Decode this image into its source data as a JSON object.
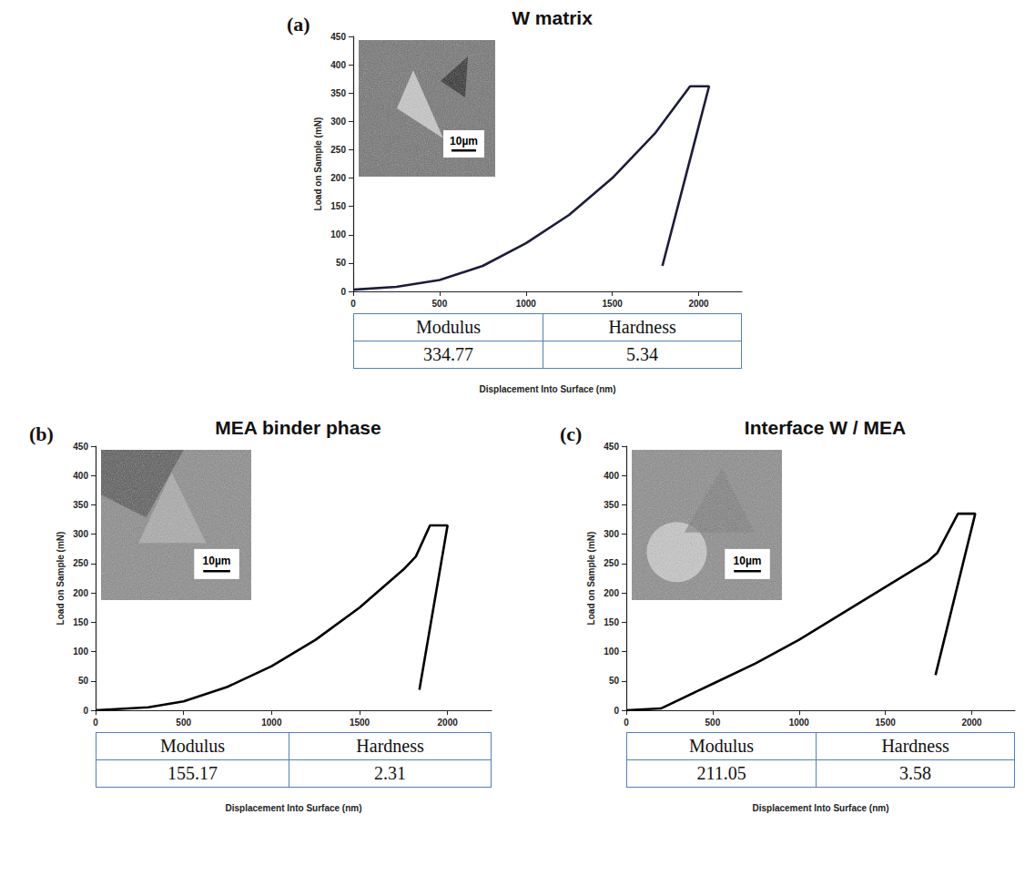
{
  "chart_data": [
    {
      "type": "line",
      "panel": "(a)",
      "title": "W matrix",
      "x_label": "Displacement Into Surface (nm)",
      "y_label": "Load on Sample (mN)",
      "x": [
        0,
        250,
        500,
        750,
        1000,
        1250,
        1500,
        1750,
        1950,
        2060,
        1790
      ],
      "values": [
        3,
        8,
        20,
        45,
        85,
        135,
        200,
        280,
        362,
        362,
        45
      ],
      "color": "#1c1c3c",
      "xlim": [
        0,
        2250
      ],
      "xticks": [
        0,
        500,
        1000,
        1500,
        2000
      ],
      "ylim": [
        0,
        450
      ],
      "yticks": [
        0,
        50,
        100,
        150,
        200,
        250,
        300,
        350,
        400,
        450
      ],
      "grid": false,
      "inset_scale_bar": "10µm",
      "table": {
        "columns": [
          "Modulus",
          "Hardness"
        ],
        "values": [
          334.77,
          5.34
        ]
      }
    },
    {
      "type": "line",
      "panel": "(b)",
      "title": "MEA binder phase",
      "x_label": "Displacement Into Surface (nm)",
      "y_label": "Load on Sample (mN)",
      "x": [
        0,
        300,
        500,
        750,
        1000,
        1250,
        1500,
        1750,
        1820,
        1900,
        2000,
        1840
      ],
      "values": [
        0,
        5,
        15,
        40,
        75,
        120,
        175,
        240,
        262,
        315,
        315,
        35
      ],
      "color": "#000000",
      "xlim": [
        0,
        2250
      ],
      "xticks": [
        0,
        500,
        1000,
        1500,
        2000
      ],
      "ylim": [
        0,
        450
      ],
      "yticks": [
        0,
        50,
        100,
        150,
        200,
        250,
        300,
        350,
        400,
        450
      ],
      "grid": false,
      "inset_scale_bar": "10µm",
      "table": {
        "columns": [
          "Modulus",
          "Hardness"
        ],
        "values": [
          155.17,
          2.31
        ]
      }
    },
    {
      "type": "line",
      "panel": "(c)",
      "title": "Interface W / MEA",
      "x_label": "Displacement Into Surface (nm)",
      "y_label": "Load on Sample (mN)",
      "x": [
        0,
        200,
        500,
        750,
        1000,
        1250,
        1500,
        1750,
        1800,
        1920,
        2020,
        1790
      ],
      "values": [
        0,
        3,
        45,
        80,
        120,
        165,
        210,
        255,
        268,
        335,
        335,
        60
      ],
      "color": "#000000",
      "xlim": [
        0,
        2250
      ],
      "xticks": [
        0,
        500,
        1000,
        1500,
        2000
      ],
      "ylim": [
        0,
        450
      ],
      "yticks": [
        0,
        50,
        100,
        150,
        200,
        250,
        300,
        350,
        400,
        450
      ],
      "grid": false,
      "inset_scale_bar": "10µm",
      "table": {
        "columns": [
          "Modulus",
          "Hardness"
        ],
        "values": [
          211.05,
          3.58
        ]
      }
    }
  ]
}
